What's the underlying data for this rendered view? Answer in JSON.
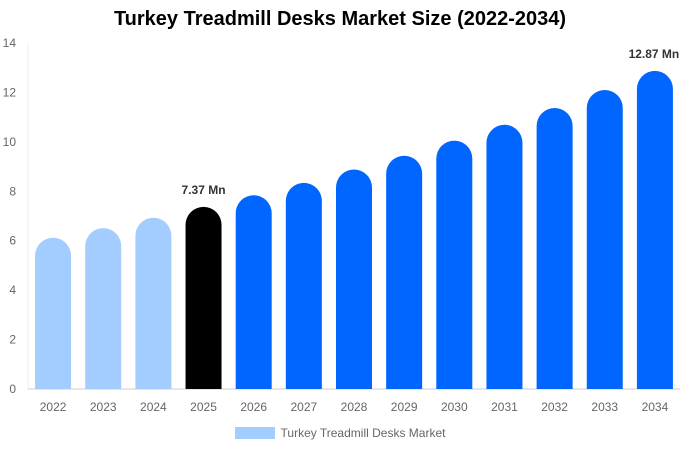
{
  "chart_data": {
    "type": "bar",
    "title": "Turkey Treadmill Desks Market Size (2022-2034)",
    "categories": [
      "2022",
      "2023",
      "2024",
      "2025",
      "2026",
      "2027",
      "2028",
      "2029",
      "2030",
      "2031",
      "2032",
      "2033",
      "2034"
    ],
    "series": [
      {
        "name": "Turkey Treadmill Desks Market",
        "values": [
          6.12,
          6.51,
          6.93,
          7.37,
          7.84,
          8.34,
          8.88,
          9.44,
          10.05,
          10.69,
          11.37,
          12.1,
          12.87
        ]
      }
    ],
    "data_labels": {
      "3": "7.37 Mn",
      "12": "12.87 Mn"
    },
    "ylim": [
      0,
      14
    ],
    "yticks": [
      0,
      2,
      4,
      6,
      8,
      10,
      12,
      14
    ],
    "grid": false,
    "legend": "bottom",
    "colors": {
      "historical": "#a3cdff",
      "base_year": "#000000",
      "forecast": "#0066ff"
    }
  }
}
